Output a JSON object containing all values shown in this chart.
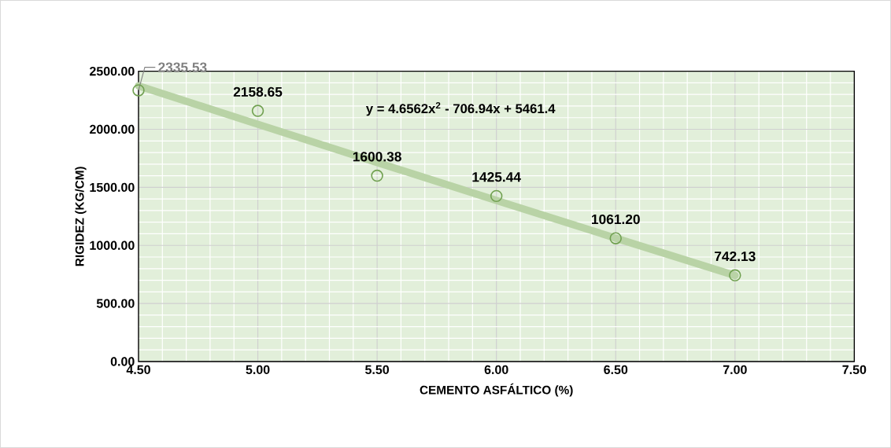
{
  "chart_data": {
    "type": "scatter",
    "xlabel": "CEMENTO ASFÁLTICO (%)",
    "ylabel": "RIGIDEZ (KG/CM)",
    "series": [
      {
        "color": "#70a050",
        "x": [
          4.5,
          5.0,
          5.5,
          6.0,
          6.5,
          7.0
        ],
        "values": [
          2335.53,
          2158.65,
          1600.38,
          1425.44,
          1061.2,
          742.13
        ],
        "value_labels": [
          "2335.53",
          "2158.65",
          "1600.38",
          "1425.44",
          "1061.20",
          "742.13"
        ],
        "marker": "circle"
      },
      {
        "type": "line",
        "color": "#b9d3a6",
        "x": [
          4.5,
          5.0,
          5.5,
          6.0,
          6.5,
          7.0
        ],
        "values": [
          2374,
          2043,
          1714,
          1387,
          1063,
          741
        ],
        "marker": "none"
      }
    ],
    "annotations": [
      "y = 4.6562x$^{2}$ - 706.94x + 5461.4"
    ],
    "xlim": [
      4.5,
      7.5
    ],
    "ylim": [
      0,
      2500
    ],
    "xticks": [
      {
        "value": 4.5,
        "label": "4.50"
      },
      {
        "value": 5.0,
        "label": "5.00"
      },
      {
        "value": 5.5,
        "label": "5.50"
      },
      {
        "value": 6.0,
        "label": "6.00"
      },
      {
        "value": 6.5,
        "label": "6.50"
      },
      {
        "value": 7.0,
        "label": "7.00"
      },
      {
        "value": 7.5,
        "label": "7.50"
      }
    ],
    "yticks": [
      {
        "value": 0,
        "label": "0.00"
      },
      {
        "value": 500,
        "label": "500.00"
      },
      {
        "value": 1000,
        "label": "1000.00"
      },
      {
        "value": 1500,
        "label": "1500.00"
      },
      {
        "value": 2000,
        "label": "2000.00"
      },
      {
        "value": 2500,
        "label": "2500.00"
      }
    ],
    "grid": true
  }
}
